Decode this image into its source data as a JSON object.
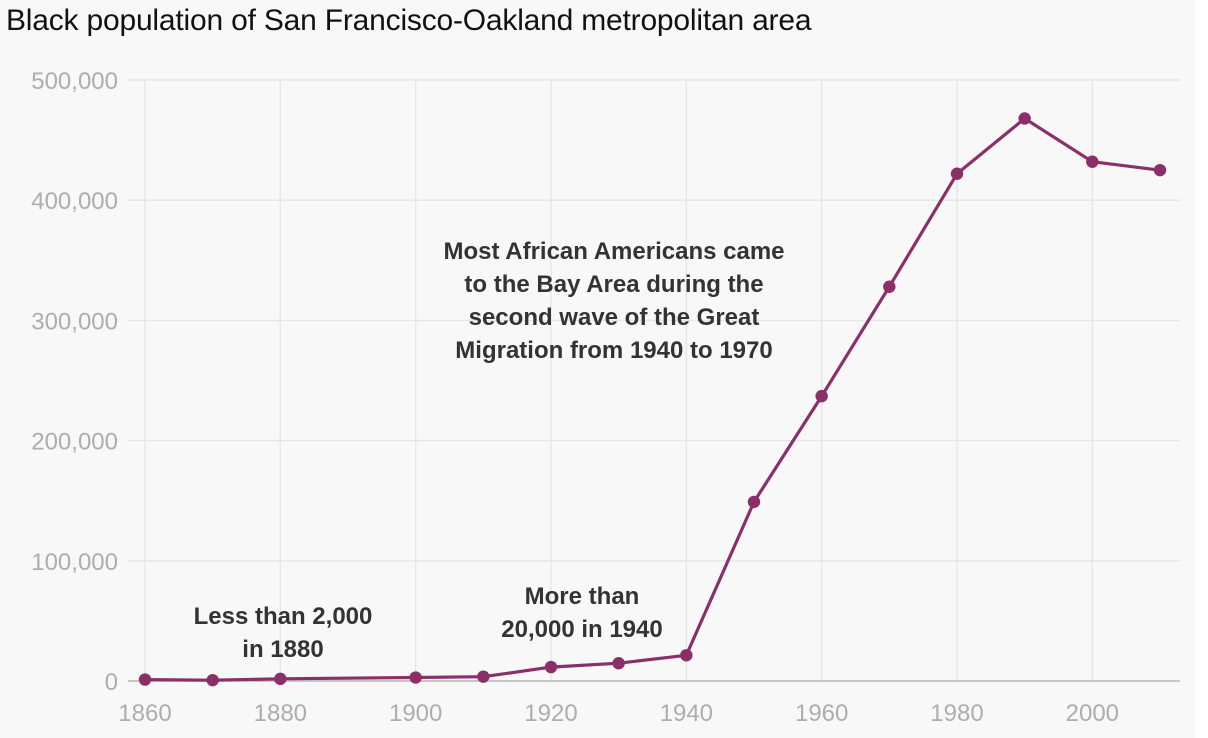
{
  "chart_data": {
    "type": "line",
    "title": "Black population of San Francisco-Oakland metropolitan area",
    "xlabel": "",
    "ylabel": "",
    "xlim": [
      1860,
      2010
    ],
    "ylim": [
      0,
      500000
    ],
    "grid": true,
    "x_ticks": [
      "1860",
      "1880",
      "1900",
      "1920",
      "1940",
      "1960",
      "1980",
      "2000"
    ],
    "y_ticks": [
      "0",
      "100,000",
      "200,000",
      "300,000",
      "400,000",
      "500,000"
    ],
    "series": [
      {
        "color": "#8b2f68",
        "points": [
          {
            "x": 1860,
            "y": 1200
          },
          {
            "x": 1870,
            "y": 700
          },
          {
            "x": 1880,
            "y": 1800
          },
          {
            "x": 1900,
            "y": 2900
          },
          {
            "x": 1910,
            "y": 3600
          },
          {
            "x": 1920,
            "y": 11600
          },
          {
            "x": 1930,
            "y": 14800
          },
          {
            "x": 1940,
            "y": 21400
          },
          {
            "x": 1950,
            "y": 149000
          },
          {
            "x": 1960,
            "y": 237000
          },
          {
            "x": 1970,
            "y": 328000
          },
          {
            "x": 1980,
            "y": 422000
          },
          {
            "x": 1990,
            "y": 468000
          },
          {
            "x": 2000,
            "y": 432000
          },
          {
            "x": 2010,
            "y": 425000
          }
        ]
      }
    ],
    "annotations": [
      {
        "lines": [
          "Less than 2,000",
          "in 1880"
        ]
      },
      {
        "lines": [
          "More than",
          "20,000 in 1940"
        ]
      },
      {
        "lines": [
          "Most African Americans came",
          "to the Bay Area during the",
          "second wave of the Great",
          "Migration from 1940 to 1970"
        ]
      }
    ]
  }
}
